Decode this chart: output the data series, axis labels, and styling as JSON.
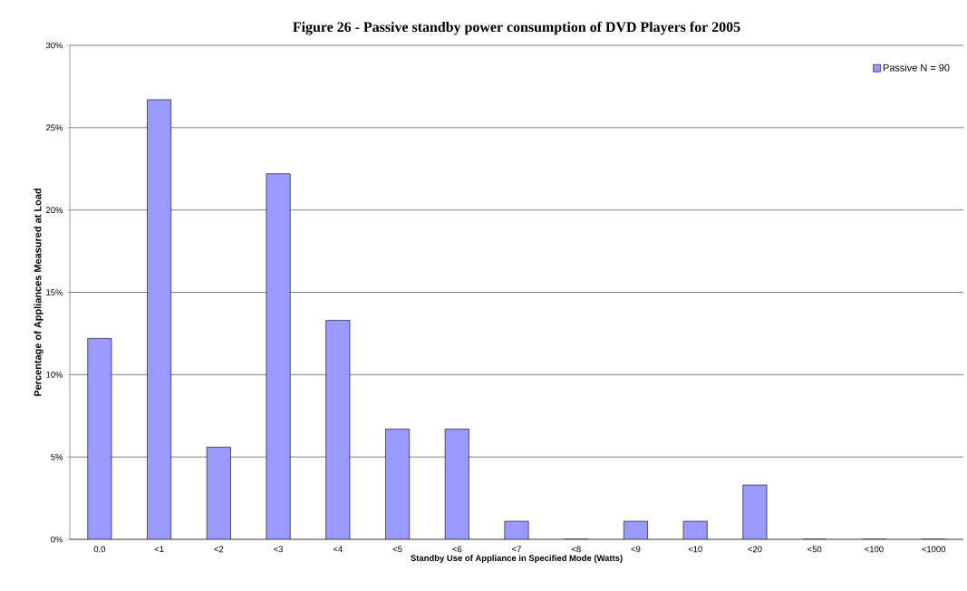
{
  "chart_data": {
    "type": "bar",
    "title": "Figure 26 - Passive standby power consumption of DVD Players for 2005",
    "xlabel": "Standby Use of Appliance in Specified Mode (Watts)",
    "ylabel": "Percentage of Appliances Measured at Load",
    "categories": [
      "0.0",
      "<1",
      "<2",
      "<3",
      "<4",
      "<5",
      "<6",
      "<7",
      "<8",
      "<9",
      "<10",
      "<20",
      "<50",
      "<100",
      "<1000"
    ],
    "series": [
      {
        "name": "Passive N = 90",
        "color": "#9999ff",
        "values": [
          12.2,
          26.7,
          5.6,
          22.2,
          13.3,
          6.7,
          6.7,
          1.1,
          0,
          1.1,
          1.1,
          3.3,
          0,
          0,
          0
        ]
      }
    ],
    "ylim": [
      0,
      30
    ],
    "yticks": [
      {
        "value": 0,
        "label": "0%"
      },
      {
        "value": 5,
        "label": "5%"
      },
      {
        "value": 10,
        "label": "10%"
      },
      {
        "value": 15,
        "label": "15%"
      },
      {
        "value": 20,
        "label": "20%"
      },
      {
        "value": 25,
        "label": "25%"
      },
      {
        "value": 30,
        "label": "30%"
      }
    ],
    "grid": "y",
    "legend": "top right"
  }
}
